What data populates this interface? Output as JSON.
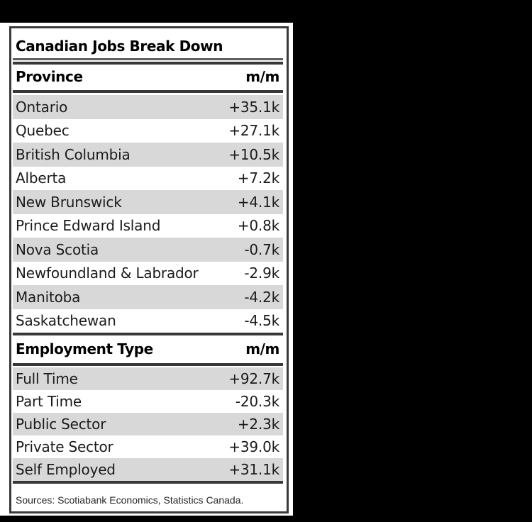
{
  "table": {
    "title": "Canadian Jobs Break Down",
    "sections": [
      {
        "header": {
          "label": "Province",
          "unit": "m/m"
        },
        "rows": [
          {
            "label": "Ontario",
            "value": "+35.1k"
          },
          {
            "label": "Quebec",
            "value": "+27.1k"
          },
          {
            "label": "British Columbia",
            "value": "+10.5k"
          },
          {
            "label": "Alberta",
            "value": "+7.2k"
          },
          {
            "label": "New Brunswick",
            "value": "+4.1k"
          },
          {
            "label": "Prince Edward Island",
            "value": "+0.8k"
          },
          {
            "label": "Nova Scotia",
            "value": "-0.7k"
          },
          {
            "label": "Newfoundland & Labrador",
            "value": "-2.9k"
          },
          {
            "label": "Manitoba",
            "value": "-4.2k"
          },
          {
            "label": "Saskatchewan",
            "value": "-4.5k"
          }
        ]
      },
      {
        "header": {
          "label": "Employment Type",
          "unit": "m/m"
        },
        "rows": [
          {
            "label": "Full Time",
            "value": "+92.7k"
          },
          {
            "label": "Part Time",
            "value": "-20.3k"
          },
          {
            "label": "Public Sector",
            "value": "+2.3k"
          },
          {
            "label": "Private Sector",
            "value": "+39.0k"
          },
          {
            "label": "Self Employed",
            "value": "+31.1k"
          }
        ]
      }
    ],
    "source_note": "Sources: Scotiabank Economics, Statistics Canada.",
    "colors": {
      "outer_background": "#000000",
      "page_background": "#ffffff",
      "row_shade": "#d8d8d8",
      "rule_dark": "#383838",
      "rule_light": "#5e5e5e",
      "text": "#1b1b1b"
    }
  },
  "chart_data": {
    "type": "table",
    "title": "Canadian Jobs Break Down",
    "sections": [
      {
        "columns": [
          "Province",
          "m/m"
        ],
        "rows": [
          [
            "Ontario",
            "+35.1k"
          ],
          [
            "Quebec",
            "+27.1k"
          ],
          [
            "British Columbia",
            "+10.5k"
          ],
          [
            "Alberta",
            "+7.2k"
          ],
          [
            "New Brunswick",
            "+4.1k"
          ],
          [
            "Prince Edward Island",
            "+0.8k"
          ],
          [
            "Nova Scotia",
            "-0.7k"
          ],
          [
            "Newfoundland & Labrador",
            "-2.9k"
          ],
          [
            "Manitoba",
            "-4.2k"
          ],
          [
            "Saskatchewan",
            "-4.5k"
          ]
        ],
        "values_thousands": [
          35.1,
          27.1,
          10.5,
          7.2,
          4.1,
          0.8,
          -0.7,
          -2.9,
          -4.2,
          -4.5
        ]
      },
      {
        "columns": [
          "Employment Type",
          "m/m"
        ],
        "rows": [
          [
            "Full Time",
            "+92.7k"
          ],
          [
            "Part Time",
            "-20.3k"
          ],
          [
            "Public Sector",
            "+2.3k"
          ],
          [
            "Private Sector",
            "+39.0k"
          ],
          [
            "Self Employed",
            "+31.1k"
          ]
        ],
        "values_thousands": [
          92.7,
          -20.3,
          2.3,
          39.0,
          31.1
        ]
      }
    ],
    "source": "Sources: Scotiabank Economics, Statistics Canada."
  }
}
